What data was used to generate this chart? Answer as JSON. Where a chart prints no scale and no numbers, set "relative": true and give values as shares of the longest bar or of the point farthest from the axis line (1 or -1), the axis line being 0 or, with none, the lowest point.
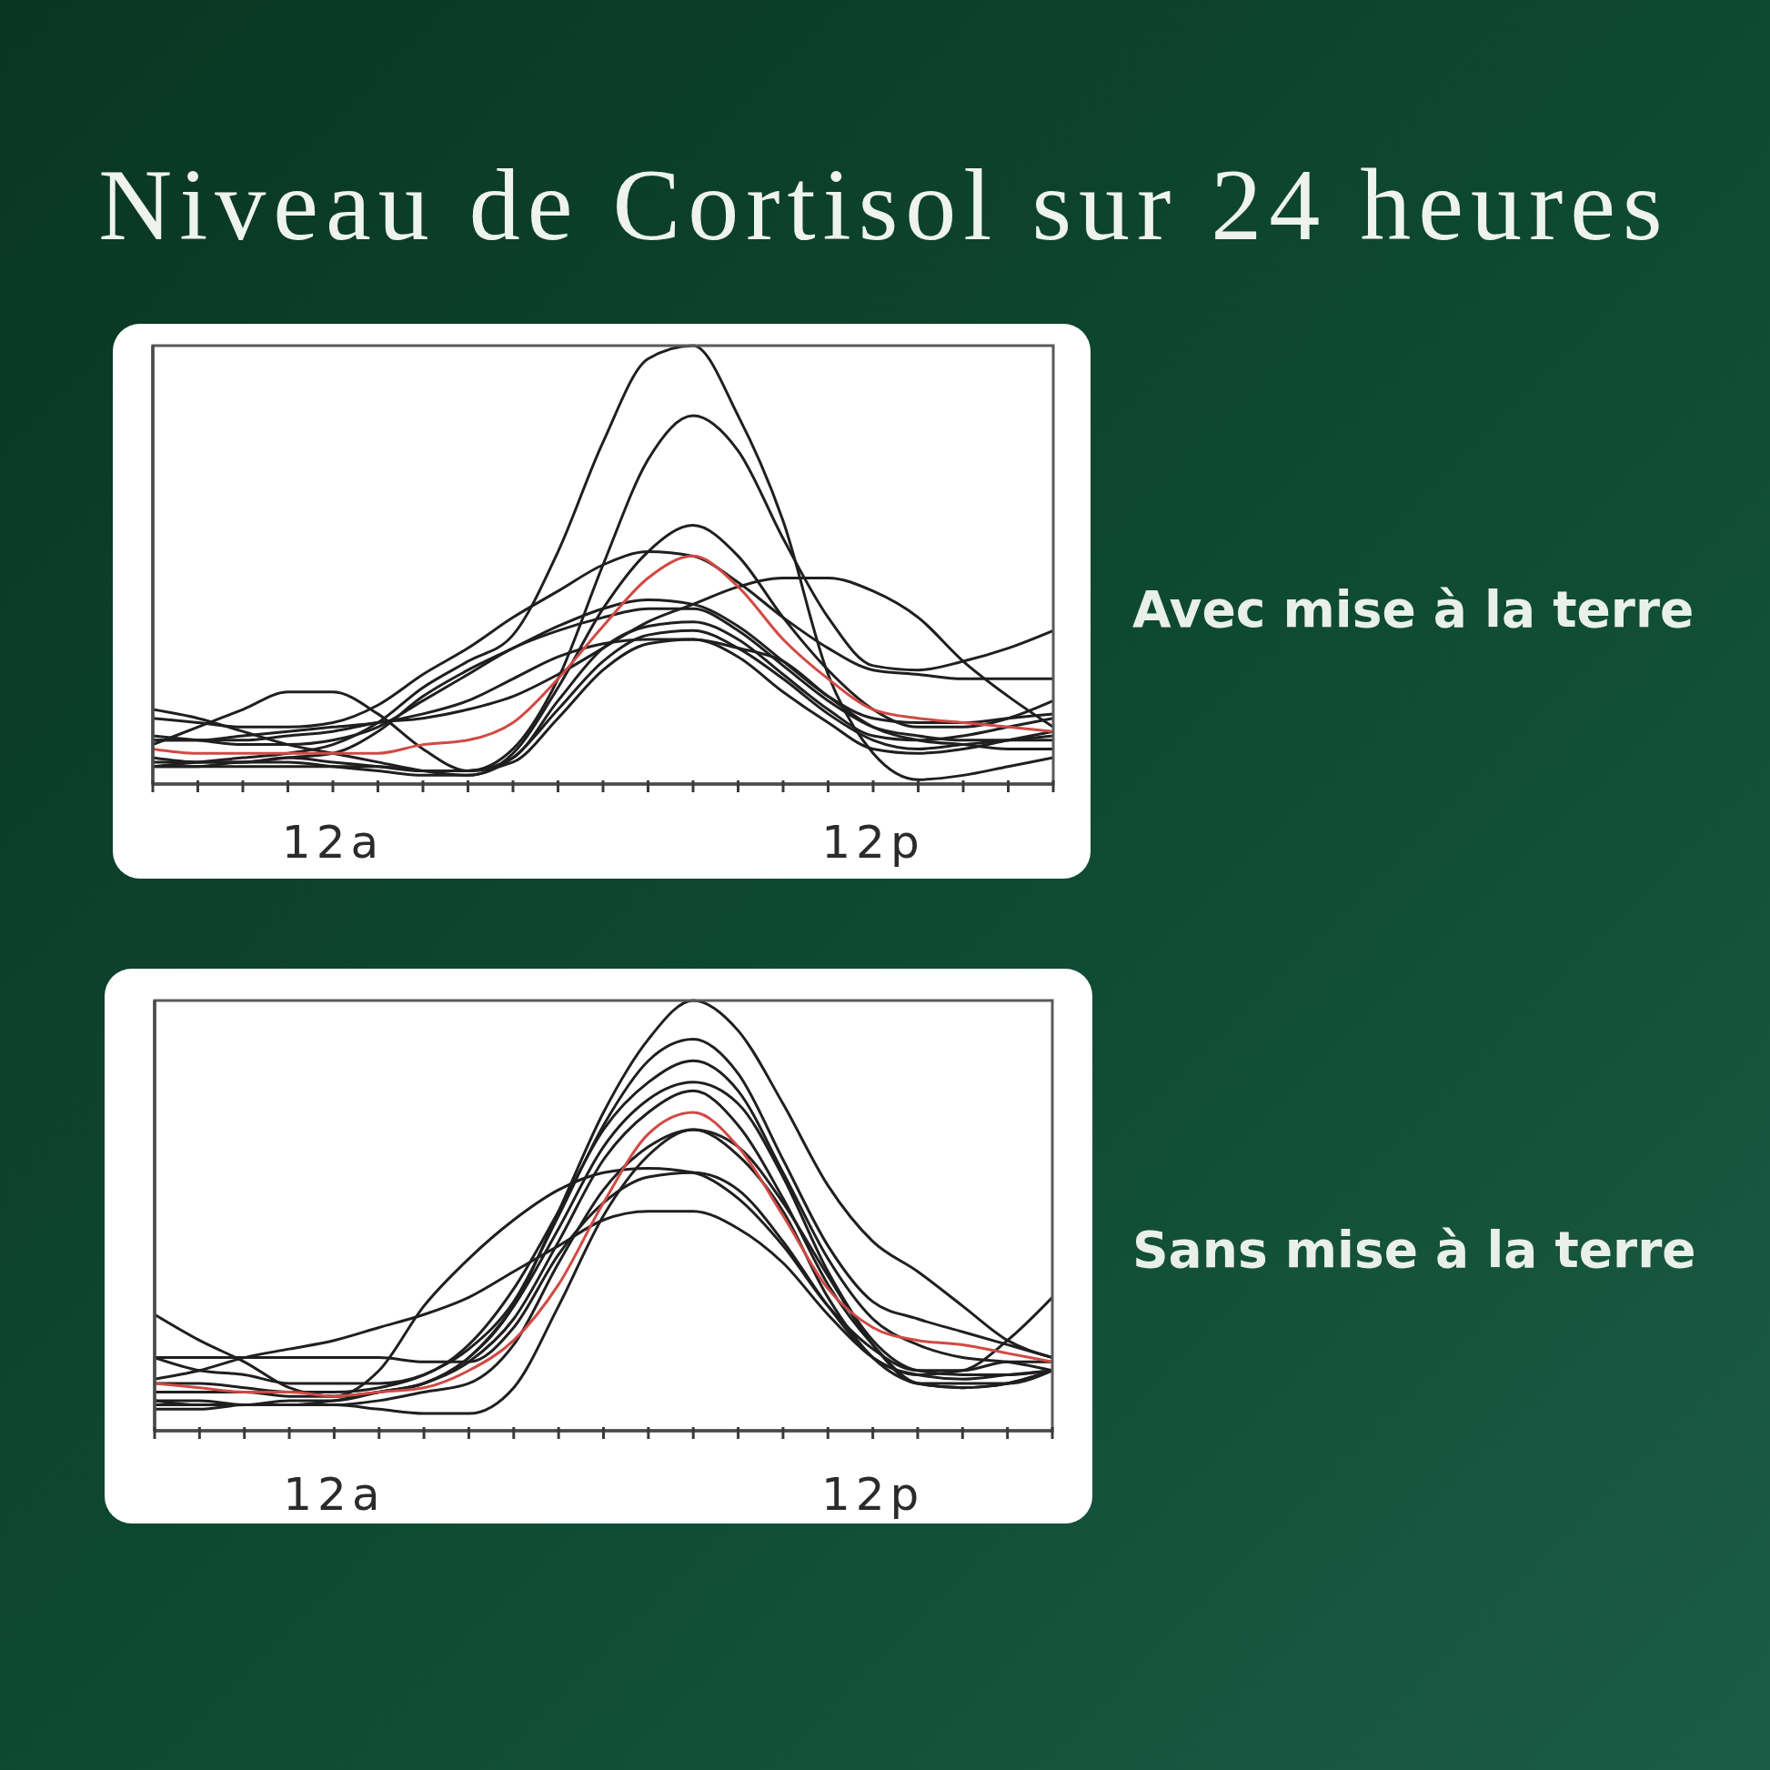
{
  "chart_data": [
    {
      "type": "line",
      "title": "Niveau de Cortisol sur 24 heures",
      "annotations": [
        "Avec mise à la terre"
      ],
      "relative": true,
      "categories": [
        null,
        null,
        null,
        null,
        "12a",
        null,
        null,
        null,
        null,
        null,
        null,
        null,
        null,
        null,
        null,
        null,
        "12p",
        null,
        null,
        null,
        null
      ],
      "series": [
        {
          "color": "#1f1f1f",
          "values": [
            0.04,
            0.05,
            0.06,
            0.07,
            0.09,
            0.14,
            0.22,
            0.28,
            0.34,
            0.53,
            0.78,
            0.97,
            1,
            0.84,
            0.6,
            0.25,
            0.07,
            0.01,
            0.02,
            0.04,
            0.06
          ]
        },
        {
          "color": "#1f1f1f",
          "values": [
            0.06,
            0.05,
            0.05,
            0.06,
            0.05,
            0.04,
            0.03,
            0.03,
            0.08,
            0.24,
            0.5,
            0.74,
            0.84,
            0.76,
            0.56,
            0.38,
            0.27,
            0.26,
            0.28,
            0.31,
            0.35
          ]
        },
        {
          "color": "#1f1f1f",
          "values": [
            0.04,
            0.04,
            0.05,
            0.05,
            0.04,
            0.03,
            0.02,
            0.02,
            0.07,
            0.22,
            0.4,
            0.53,
            0.59,
            0.52,
            0.38,
            0.26,
            0.17,
            0.13,
            0.13,
            0.15,
            0.19
          ]
        },
        {
          "color": "#1f1f1f",
          "values": [
            0.15,
            0.14,
            0.13,
            0.13,
            0.14,
            0.18,
            0.25,
            0.31,
            0.38,
            0.44,
            0.5,
            0.53,
            0.52,
            0.46,
            0.38,
            0.31,
            0.26,
            0.25,
            0.24,
            0.24,
            0.24
          ]
        },
        {
          "color": "#1f1f1f",
          "values": [
            0.1,
            0.1,
            0.1,
            0.11,
            0.12,
            0.14,
            0.15,
            0.17,
            0.2,
            0.25,
            0.31,
            0.37,
            0.41,
            0.45,
            0.47,
            0.47,
            0.44,
            0.38,
            0.28,
            0.2,
            0.13
          ]
        },
        {
          "color": "#1f1f1f",
          "values": [
            0.09,
            0.13,
            0.17,
            0.21,
            0.21,
            0.16,
            0.08,
            0.03,
            0.06,
            0.19,
            0.31,
            0.36,
            0.37,
            0.33,
            0.25,
            0.17,
            0.11,
            0.1,
            0.11,
            0.13,
            0.15
          ]
        },
        {
          "color": "#1f1f1f",
          "values": [
            0.17,
            0.15,
            0.12,
            0.09,
            0.07,
            0.05,
            0.03,
            0.02,
            0.06,
            0.17,
            0.28,
            0.34,
            0.35,
            0.31,
            0.24,
            0.16,
            0.1,
            0.08,
            0.09,
            0.1,
            0.11
          ]
        },
        {
          "color": "#1f1f1f",
          "values": [
            0.05,
            0.05,
            0.05,
            0.06,
            0.07,
            0.12,
            0.2,
            0.26,
            0.31,
            0.36,
            0.4,
            0.42,
            0.41,
            0.36,
            0.28,
            0.2,
            0.15,
            0.14,
            0.14,
            0.15,
            0.16
          ]
        },
        {
          "color": "#1f1f1f",
          "values": [
            0.11,
            0.1,
            0.09,
            0.09,
            0.1,
            0.13,
            0.19,
            0.25,
            0.31,
            0.35,
            0.38,
            0.4,
            0.4,
            0.35,
            0.27,
            0.19,
            0.13,
            0.11,
            0.1,
            0.1,
            0.1
          ]
        },
        {
          "color": "#1f1f1f",
          "values": [
            0.1,
            0.1,
            0.11,
            0.12,
            0.13,
            0.14,
            0.16,
            0.19,
            0.24,
            0.29,
            0.32,
            0.33,
            0.33,
            0.31,
            0.28,
            0.2,
            0.13,
            0.1,
            0.09,
            0.08,
            0.08
          ]
        },
        {
          "color": "#1f1f1f",
          "values": [
            0.04,
            0.04,
            0.04,
            0.04,
            0.04,
            0.04,
            0.03,
            0.03,
            0.05,
            0.15,
            0.26,
            0.32,
            0.33,
            0.29,
            0.21,
            0.14,
            0.08,
            0.07,
            0.08,
            0.1,
            0.12
          ]
        },
        {
          "color": "#d04a44",
          "values": [
            0.08,
            0.07,
            0.07,
            0.07,
            0.07,
            0.07,
            0.09,
            0.1,
            0.14,
            0.24,
            0.36,
            0.47,
            0.52,
            0.45,
            0.33,
            0.24,
            0.17,
            0.15,
            0.14,
            0.13,
            0.12
          ]
        }
      ]
    },
    {
      "type": "line",
      "annotations": [
        "Sans mise à la terre"
      ],
      "relative": true,
      "categories": [
        null,
        null,
        null,
        null,
        "12a",
        null,
        null,
        null,
        null,
        null,
        null,
        null,
        null,
        null,
        null,
        null,
        "12p",
        null,
        null,
        null,
        null
      ],
      "series": [
        {
          "color": "#1f1f1f",
          "values": [
            0.07,
            0.06,
            0.06,
            0.07,
            0.07,
            0.09,
            0.11,
            0.17,
            0.29,
            0.51,
            0.74,
            0.91,
            1,
            0.93,
            0.76,
            0.57,
            0.44,
            0.37,
            0.29,
            0.21,
            0.17
          ]
        },
        {
          "color": "#1f1f1f",
          "values": [
            0.11,
            0.11,
            0.1,
            0.09,
            0.09,
            0.1,
            0.13,
            0.19,
            0.3,
            0.5,
            0.71,
            0.86,
            0.91,
            0.83,
            0.63,
            0.43,
            0.3,
            0.26,
            0.23,
            0.2,
            0.17
          ]
        },
        {
          "color": "#1f1f1f",
          "values": [
            0.17,
            0.14,
            0.13,
            0.11,
            0.11,
            0.11,
            0.13,
            0.2,
            0.33,
            0.51,
            0.7,
            0.81,
            0.86,
            0.79,
            0.6,
            0.4,
            0.26,
            0.2,
            0.17,
            0.16,
            0.14
          ]
        },
        {
          "color": "#1f1f1f",
          "values": [
            0.09,
            0.09,
            0.09,
            0.08,
            0.08,
            0.09,
            0.11,
            0.17,
            0.29,
            0.47,
            0.66,
            0.77,
            0.81,
            0.76,
            0.59,
            0.37,
            0.21,
            0.14,
            0.13,
            0.13,
            0.14
          ]
        },
        {
          "color": "#1f1f1f",
          "values": [
            0.06,
            0.06,
            0.06,
            0.06,
            0.07,
            0.09,
            0.11,
            0.16,
            0.26,
            0.44,
            0.63,
            0.74,
            0.79,
            0.71,
            0.54,
            0.34,
            0.2,
            0.11,
            0.1,
            0.11,
            0.14
          ]
        },
        {
          "color": "#1f1f1f",
          "values": [
            0.05,
            0.05,
            0.06,
            0.06,
            0.06,
            0.07,
            0.09,
            0.11,
            0.2,
            0.39,
            0.56,
            0.66,
            0.7,
            0.64,
            0.51,
            0.31,
            0.17,
            0.11,
            0.1,
            0.11,
            0.14
          ]
        },
        {
          "color": "#1f1f1f",
          "values": [
            0.27,
            0.21,
            0.16,
            0.1,
            0.08,
            0.14,
            0.29,
            0.4,
            0.49,
            0.56,
            0.6,
            0.61,
            0.6,
            0.54,
            0.43,
            0.29,
            0.19,
            0.14,
            0.14,
            0.16,
            0.16
          ]
        },
        {
          "color": "#1f1f1f",
          "values": [
            0.12,
            0.14,
            0.17,
            0.19,
            0.21,
            0.24,
            0.27,
            0.31,
            0.37,
            0.43,
            0.49,
            0.51,
            0.51,
            0.47,
            0.39,
            0.27,
            0.17,
            0.13,
            0.14,
            0.21,
            0.31
          ]
        },
        {
          "color": "#1f1f1f",
          "values": [
            0.17,
            0.17,
            0.17,
            0.17,
            0.17,
            0.17,
            0.16,
            0.16,
            0.24,
            0.41,
            0.53,
            0.59,
            0.6,
            0.56,
            0.44,
            0.29,
            0.17,
            0.13,
            0.12,
            0.13,
            0.14
          ]
        },
        {
          "color": "#1f1f1f",
          "values": [
            0.07,
            0.07,
            0.06,
            0.06,
            0.06,
            0.05,
            0.04,
            0.04,
            0.1,
            0.29,
            0.5,
            0.64,
            0.7,
            0.66,
            0.53,
            0.36,
            0.2,
            0.11,
            0.11,
            0.11,
            0.14
          ]
        },
        {
          "color": "#d04a44",
          "values": [
            0.11,
            0.1,
            0.09,
            0.09,
            0.08,
            0.09,
            0.1,
            0.14,
            0.21,
            0.34,
            0.53,
            0.69,
            0.74,
            0.66,
            0.5,
            0.33,
            0.24,
            0.21,
            0.2,
            0.18,
            0.16
          ]
        }
      ]
    }
  ]
}
